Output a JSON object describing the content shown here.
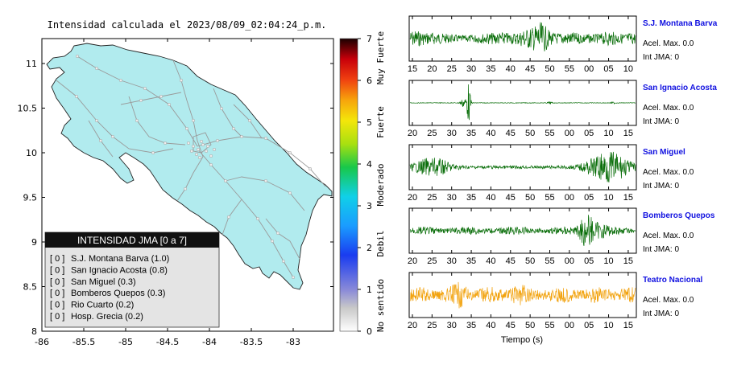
{
  "map": {
    "title": "Intensidad calculada el 2023/08/09_02:04:24_p.m.",
    "x_ticks": [
      "-86",
      "-85.5",
      "-85",
      "-84.5",
      "-84",
      "-83.5",
      "-83"
    ],
    "y_ticks": [
      "11",
      "10.5",
      "10",
      "9.5",
      "9",
      "8.5",
      "8"
    ],
    "land_color": "#b1ebee",
    "legend": {
      "header": "INTENSIDAD JMA [0 a 7]",
      "items": [
        {
          "badge": "[ 0 ]",
          "label": "S.J. Montana Barva (1.0)"
        },
        {
          "badge": "[ 0 ]",
          "label": "San Ignacio Acosta (0.8)"
        },
        {
          "badge": "[ 0 ]",
          "label": "San Miguel (0.3)"
        },
        {
          "badge": "[ 0 ]",
          "label": "Bomberos Quepos (0.3)"
        },
        {
          "badge": "[ 0 ]",
          "label": "Rio Cuarto (0.2)"
        },
        {
          "badge": "[ 0 ]",
          "label": "Hosp. Grecia (0.2)"
        }
      ]
    }
  },
  "colorbar": {
    "ticks": [
      "0",
      "1",
      "2",
      "3",
      "4",
      "5",
      "6",
      "7"
    ],
    "labels": [
      "No sentido",
      "Debil",
      "Moderado",
      "Fuerte",
      "Muy Fuerte"
    ]
  },
  "stations": [
    {
      "name": "S.J. Montana Barva",
      "accel": "Acel. Max. 0.0",
      "intensity": "Int JMA: 0",
      "color": "#0a6e0a",
      "pattern": "burst",
      "peak": 0.82,
      "ticks": [
        "15",
        "20",
        "25",
        "30",
        "35",
        "40",
        "45",
        "50",
        "55",
        "00",
        "05",
        "10"
      ]
    },
    {
      "name": "San Ignacio Acosta",
      "accel": "Acel. Max. 0.0",
      "intensity": "Int JMA: 0",
      "color": "#0a6e0a",
      "pattern": "spike",
      "peak": 0.95,
      "ticks": [
        "20",
        "25",
        "30",
        "35",
        "40",
        "45",
        "50",
        "55",
        "00",
        "05",
        "10",
        "15"
      ]
    },
    {
      "name": "San Miguel",
      "accel": "Acel. Max. 0.0",
      "intensity": "Int JMA: 0",
      "color": "#0a6e0a",
      "pattern": "ends",
      "peak": 0.9,
      "ticks": [
        "20",
        "25",
        "30",
        "35",
        "40",
        "45",
        "50",
        "55",
        "00",
        "05",
        "10",
        "15"
      ]
    },
    {
      "name": "Bomberos Quepos",
      "accel": "Acel. Max. 0.0",
      "intensity": "Int JMA: 0",
      "color": "#0a6e0a",
      "pattern": "late",
      "peak": 0.85,
      "ticks": [
        "20",
        "25",
        "30",
        "35",
        "40",
        "45",
        "50",
        "55",
        "00",
        "05",
        "10",
        "15"
      ]
    },
    {
      "name": "Teatro Nacional",
      "accel": "Acel. Max. 0.0",
      "intensity": "Int JMA: 0",
      "color": "#f2a30f",
      "pattern": "steady",
      "peak": 0.8,
      "ticks": [
        "20",
        "25",
        "30",
        "35",
        "40",
        "45",
        "50",
        "55",
        "00",
        "05",
        "10",
        "15"
      ]
    }
  ],
  "xaxis_label": "Tiempo (s)"
}
